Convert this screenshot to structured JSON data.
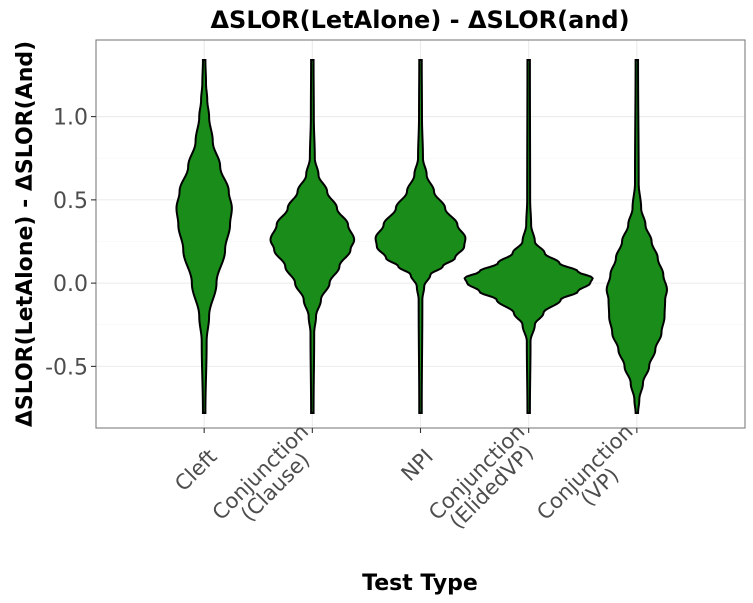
{
  "chart_data": {
    "type": "violin",
    "title": "ΔSLOR(LetAlone) - ΔSLOR(and)",
    "xlabel": "Test Type",
    "ylabel": "ΔSLOR(LetAlone) - ΔSLOR(And)",
    "ylim": [
      -0.87,
      1.46
    ],
    "yticks": [
      -0.5,
      0.0,
      0.5,
      1.0
    ],
    "ytick_labels": [
      "-0.5",
      "0.0",
      "0.5",
      "1.0"
    ],
    "fill_color": "#1a8c1a",
    "categories": [
      {
        "lines": [
          "Cleft"
        ],
        "y_min": -0.78,
        "y_max": 1.34,
        "profile": [
          [
            -0.78,
            0.01
          ],
          [
            -0.35,
            0.02
          ],
          [
            -0.2,
            0.04
          ],
          [
            0.0,
            0.1
          ],
          [
            0.2,
            0.17
          ],
          [
            0.35,
            0.21
          ],
          [
            0.45,
            0.225
          ],
          [
            0.55,
            0.2
          ],
          [
            0.7,
            0.13
          ],
          [
            0.85,
            0.07
          ],
          [
            1.0,
            0.04
          ],
          [
            1.1,
            0.025
          ],
          [
            1.2,
            0.015
          ],
          [
            1.34,
            0.01
          ]
        ]
      },
      {
        "lines": [
          "Conjunction",
          "(Clause)"
        ],
        "y_min": -0.78,
        "y_max": 1.34,
        "profile": [
          [
            -0.78,
            0.01
          ],
          [
            -0.3,
            0.015
          ],
          [
            -0.2,
            0.03
          ],
          [
            -0.1,
            0.07
          ],
          [
            0.0,
            0.14
          ],
          [
            0.1,
            0.22
          ],
          [
            0.2,
            0.31
          ],
          [
            0.26,
            0.34
          ],
          [
            0.35,
            0.29
          ],
          [
            0.45,
            0.2
          ],
          [
            0.55,
            0.12
          ],
          [
            0.65,
            0.05
          ],
          [
            0.75,
            0.02
          ],
          [
            1.0,
            0.012
          ],
          [
            1.34,
            0.01
          ]
        ]
      },
      {
        "lines": [
          "NPI"
        ],
        "y_min": -0.78,
        "y_max": 1.34,
        "profile": [
          [
            -0.78,
            0.01
          ],
          [
            -0.1,
            0.015
          ],
          [
            -0.02,
            0.03
          ],
          [
            0.05,
            0.08
          ],
          [
            0.1,
            0.18
          ],
          [
            0.15,
            0.28
          ],
          [
            0.22,
            0.355
          ],
          [
            0.27,
            0.365
          ],
          [
            0.35,
            0.3
          ],
          [
            0.45,
            0.2
          ],
          [
            0.55,
            0.11
          ],
          [
            0.65,
            0.05
          ],
          [
            0.75,
            0.02
          ],
          [
            1.0,
            0.012
          ],
          [
            1.34,
            0.01
          ]
        ]
      },
      {
        "lines": [
          "Conjunction",
          "(ElidedVP)"
        ],
        "y_min": -0.78,
        "y_max": 1.34,
        "profile": [
          [
            -0.78,
            0.01
          ],
          [
            -0.35,
            0.015
          ],
          [
            -0.25,
            0.05
          ],
          [
            -0.18,
            0.12
          ],
          [
            -0.1,
            0.26
          ],
          [
            -0.05,
            0.4
          ],
          [
            0.0,
            0.5
          ],
          [
            0.03,
            0.52
          ],
          [
            0.07,
            0.4
          ],
          [
            0.12,
            0.25
          ],
          [
            0.18,
            0.13
          ],
          [
            0.25,
            0.05
          ],
          [
            0.35,
            0.02
          ],
          [
            0.5,
            0.012
          ],
          [
            1.34,
            0.01
          ]
        ]
      },
      {
        "lines": [
          "Conjunction",
          "(VP)"
        ],
        "y_min": -0.78,
        "y_max": 1.34,
        "profile": [
          [
            -0.78,
            0.01
          ],
          [
            -0.7,
            0.02
          ],
          [
            -0.6,
            0.05
          ],
          [
            -0.5,
            0.1
          ],
          [
            -0.4,
            0.15
          ],
          [
            -0.3,
            0.2
          ],
          [
            -0.2,
            0.225
          ],
          [
            -0.1,
            0.23
          ],
          [
            -0.04,
            0.245
          ],
          [
            0.05,
            0.215
          ],
          [
            0.15,
            0.17
          ],
          [
            0.25,
            0.12
          ],
          [
            0.35,
            0.07
          ],
          [
            0.45,
            0.035
          ],
          [
            0.6,
            0.015
          ],
          [
            1.34,
            0.01
          ]
        ]
      }
    ]
  }
}
